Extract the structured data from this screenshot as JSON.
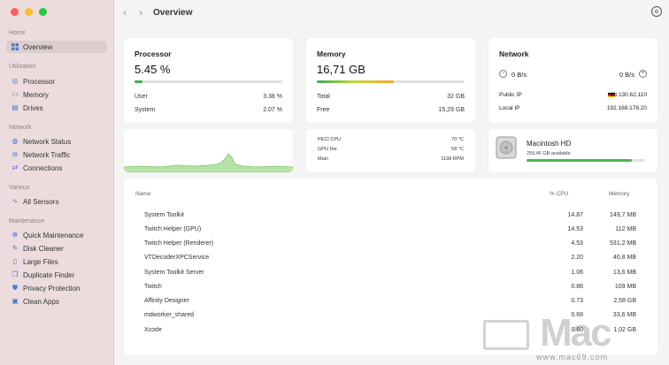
{
  "sidebar": {
    "sections": {
      "home": "Home",
      "utilization": "Utilization",
      "network": "Network",
      "various": "Various",
      "maintenance": "Maintenance"
    },
    "items": {
      "overview": "Overview",
      "processor": "Processor",
      "memory": "Memory",
      "drives": "Drives",
      "network_status": "Network Status",
      "network_traffic": "Network Traffic",
      "connections": "Connections",
      "all_sensors": "All Sensors",
      "quick_maintenance": "Quick Maintenance",
      "disk_cleaner": "Disk Cleaner",
      "large_files": "Large Files",
      "duplicate_finder": "Duplicate Finder",
      "privacy_protection": "Privacy Protection",
      "clean_apps": "Clean Apps"
    }
  },
  "header": {
    "title": "Overview",
    "back_glyph": "‹",
    "forward_glyph": "›"
  },
  "processor": {
    "title": "Processor",
    "value": "5.45 %",
    "usage_fraction": 0.0545,
    "user_label": "User",
    "user_value": "3.38 %",
    "system_label": "System",
    "system_value": "2.07 %"
  },
  "memory": {
    "title": "Memory",
    "value": "16,71 GB",
    "usage_fraction": 0.52,
    "total_label": "Total",
    "total_value": "32 GB",
    "free_label": "Free",
    "free_value": "15,29 GB"
  },
  "network": {
    "title": "Network",
    "down": "0 B/s",
    "up": "0 B/s",
    "public_ip_label": "Public IP",
    "public_ip": "88.130.62.110",
    "local_ip_label": "Local IP",
    "local_ip": "192.168.178.20"
  },
  "sensors": {
    "peci_label": "PECI CPU",
    "peci_value": "70 °C",
    "gpu_label": "GPU Die",
    "gpu_value": "58 °C",
    "main_label": "Main",
    "main_value": "1198 RPM"
  },
  "disk": {
    "name": "Macintosh HD",
    "available": "259,46 GB available",
    "used_fraction": 0.89
  },
  "table": {
    "headers": {
      "name": "Name",
      "cpu": "% CPU",
      "memory": "Memory"
    },
    "rows": [
      {
        "name": "System Toolkit",
        "cpu": "14.87",
        "mem": "149,7 MB"
      },
      {
        "name": "Twitch Helper (GPU)",
        "cpu": "14.53",
        "mem": "112 MB"
      },
      {
        "name": "Twitch Helper (Renderer)",
        "cpu": "4.53",
        "mem": "531,2 MB"
      },
      {
        "name": "VTDecoderXPCService",
        "cpu": "2.20",
        "mem": "40,8 MB"
      },
      {
        "name": "System Toolkit Server",
        "cpu": "1.06",
        "mem": "13,6 MB"
      },
      {
        "name": "Twitch",
        "cpu": "0.86",
        "mem": "109 MB"
      },
      {
        "name": "Affinity Designer",
        "cpu": "0.73",
        "mem": "2,58 GB"
      },
      {
        "name": "mdworker_shared",
        "cpu": "0.68",
        "mem": "33,6 MB"
      },
      {
        "name": "Xcode",
        "cpu": "0.60",
        "mem": "1,02 GB"
      }
    ]
  },
  "watermark": {
    "brand": "Mac",
    "url": "www.mac69.com"
  },
  "colors": {
    "accent": "#4a78d4",
    "cpu_fill": "#37b24d",
    "disk_fill": "#49b847"
  }
}
